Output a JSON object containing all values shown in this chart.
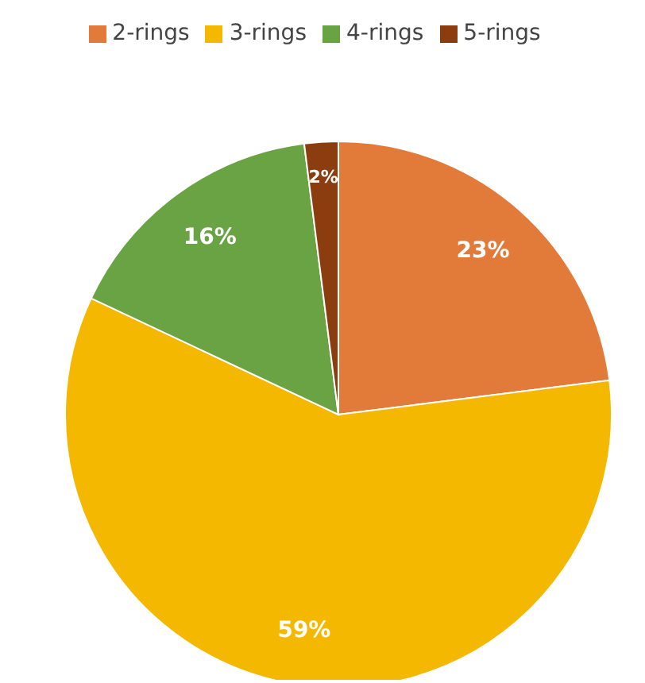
{
  "chart_data": {
    "type": "pie",
    "categories": [
      "2-rings",
      "3-rings",
      "4-rings",
      "5-rings"
    ],
    "values": [
      23,
      59,
      16,
      2
    ],
    "colors": [
      "#e27b3a",
      "#f4b800",
      "#6aa343",
      "#8c3d10"
    ],
    "value_labels": [
      "23%",
      "59%",
      "16%",
      "2%"
    ],
    "legend": "top"
  }
}
